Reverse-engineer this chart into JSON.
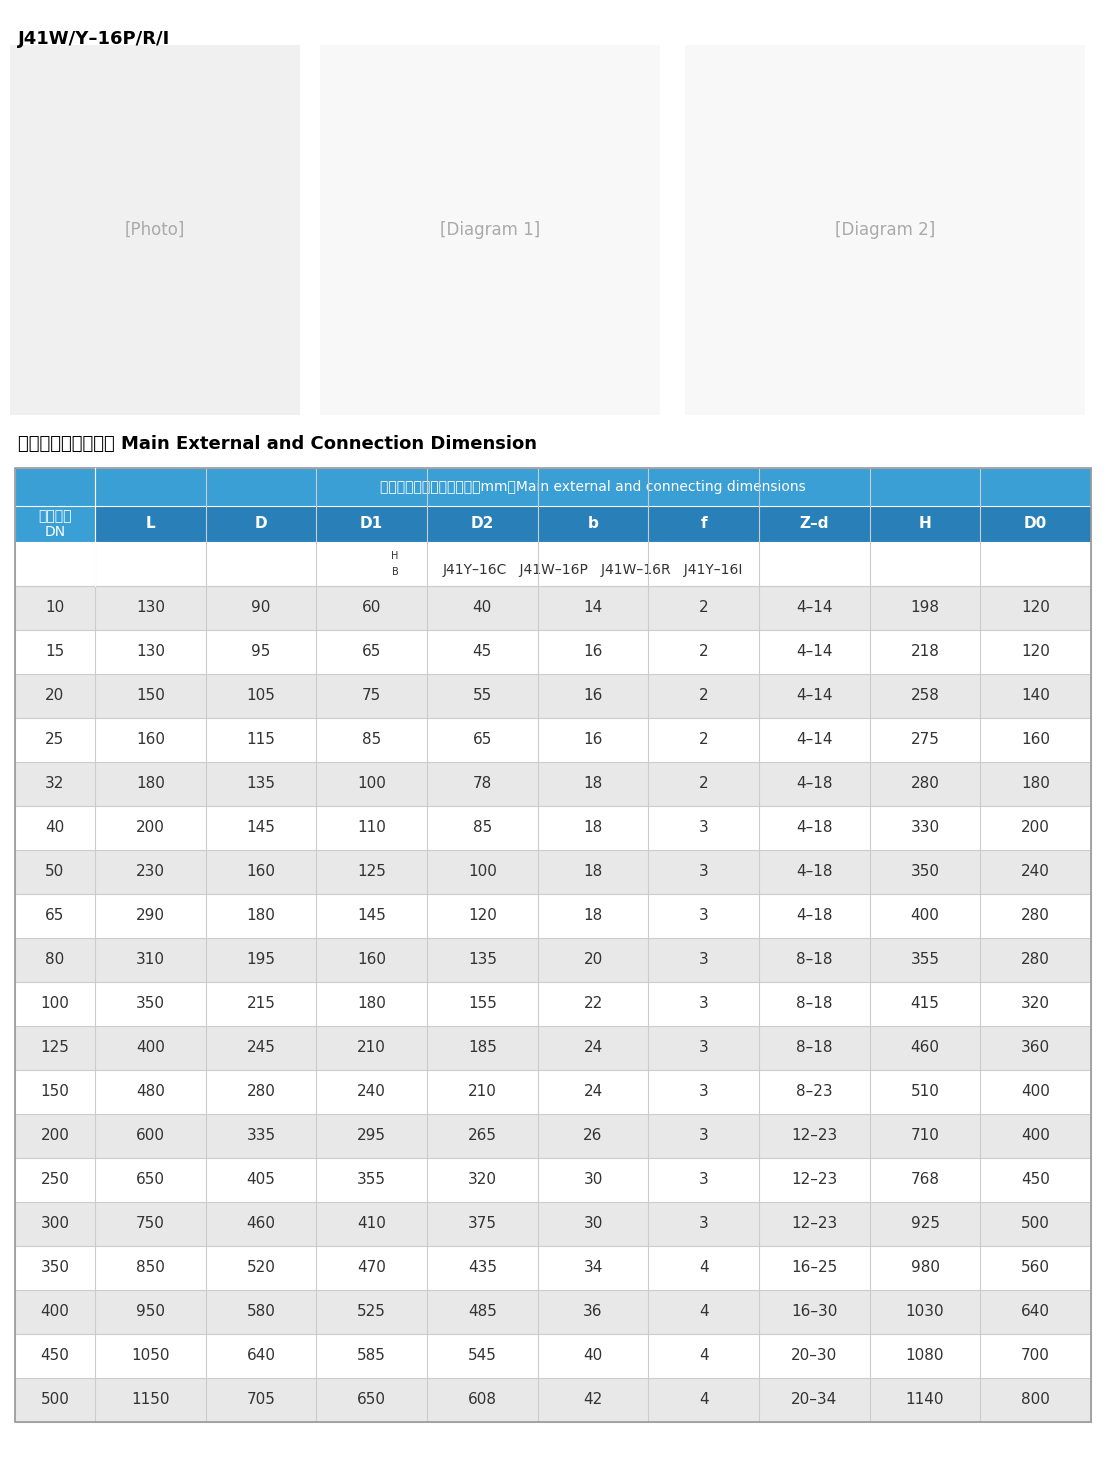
{
  "title_top": "J41W/Y–16P/R/I",
  "section_title": "主要外形和连接尺寸 Main External and Connection Dimension",
  "header_row1_text": "主要外形尺寸和连接尺寸（mm）Main external and connecting dimensions",
  "header_left": "公称通径\nDN",
  "col_headers": [
    "L",
    "D",
    "D1",
    "D2",
    "b",
    "f",
    "Z–d",
    "H",
    "D0"
  ],
  "sub_header": "J41Y–16C  J41W–16P  J41W–16R  J41Y–16I",
  "sub_header_annot": "H\nB",
  "rows": [
    [
      "10",
      "130",
      "90",
      "60",
      "40",
      "14",
      "2",
      "4–14",
      "198",
      "120"
    ],
    [
      "15",
      "130",
      "95",
      "65",
      "45",
      "16",
      "2",
      "4–14",
      "218",
      "120"
    ],
    [
      "20",
      "150",
      "105",
      "75",
      "55",
      "16",
      "2",
      "4–14",
      "258",
      "140"
    ],
    [
      "25",
      "160",
      "115",
      "85",
      "65",
      "16",
      "2",
      "4–14",
      "275",
      "160"
    ],
    [
      "32",
      "180",
      "135",
      "100",
      "78",
      "18",
      "2",
      "4–18",
      "280",
      "180"
    ],
    [
      "40",
      "200",
      "145",
      "110",
      "85",
      "18",
      "3",
      "4–18",
      "330",
      "200"
    ],
    [
      "50",
      "230",
      "160",
      "125",
      "100",
      "18",
      "3",
      "4–18",
      "350",
      "240"
    ],
    [
      "65",
      "290",
      "180",
      "145",
      "120",
      "18",
      "3",
      "4–18",
      "400",
      "280"
    ],
    [
      "80",
      "310",
      "195",
      "160",
      "135",
      "20",
      "3",
      "8–18",
      "355",
      "280"
    ],
    [
      "100",
      "350",
      "215",
      "180",
      "155",
      "22",
      "3",
      "8–18",
      "415",
      "320"
    ],
    [
      "125",
      "400",
      "245",
      "210",
      "185",
      "24",
      "3",
      "8–18",
      "460",
      "360"
    ],
    [
      "150",
      "480",
      "280",
      "240",
      "210",
      "24",
      "3",
      "8–23",
      "510",
      "400"
    ],
    [
      "200",
      "600",
      "335",
      "295",
      "265",
      "26",
      "3",
      "12–23",
      "710",
      "400"
    ],
    [
      "250",
      "650",
      "405",
      "355",
      "320",
      "30",
      "3",
      "12–23",
      "768",
      "450"
    ],
    [
      "300",
      "750",
      "460",
      "410",
      "375",
      "30",
      "3",
      "12–23",
      "925",
      "500"
    ],
    [
      "350",
      "850",
      "520",
      "470",
      "435",
      "34",
      "4",
      "16–25",
      "980",
      "560"
    ],
    [
      "400",
      "950",
      "580",
      "525",
      "485",
      "36",
      "4",
      "16–30",
      "1030",
      "640"
    ],
    [
      "450",
      "1050",
      "640",
      "585",
      "545",
      "40",
      "4",
      "20–30",
      "1080",
      "700"
    ],
    [
      "500",
      "1150",
      "705",
      "650",
      "608",
      "42",
      "4",
      "20–34",
      "1140",
      "800"
    ]
  ],
  "bg_color_header": "#3a9fd5",
  "bg_color_subheader": "#2980b9",
  "bg_color_colheader": "#4baedd",
  "bg_color_row_even": "#e8e8e8",
  "bg_color_row_odd": "#ffffff",
  "text_color_header": "#ffffff",
  "text_color_data": "#333333",
  "border_color": "#cccccc",
  "outer_border_color": "#999999"
}
